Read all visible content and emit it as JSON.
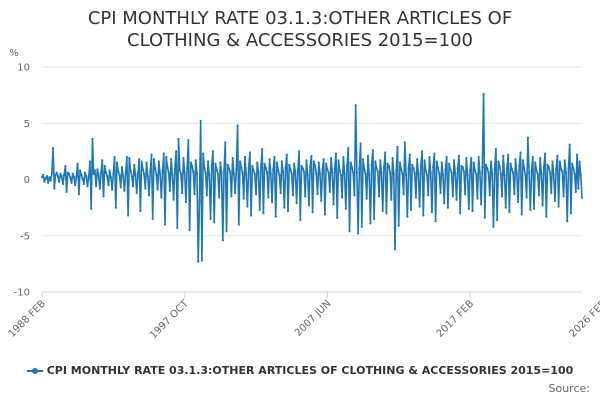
{
  "chart_data": {
    "type": "line",
    "title_lines": [
      "CPI MONTHLY RATE 03.1.3:OTHER ARTICLES OF",
      "CLOTHING & ACCESSORIES 2015=100"
    ],
    "ylabel": "%",
    "ylim": [
      -10,
      10
    ],
    "y_ticks": [
      10,
      5,
      0,
      -5,
      -10
    ],
    "x_ticks": [
      {
        "label": "1988 FEB",
        "index": 0
      },
      {
        "label": "1997 OCT",
        "index": 116
      },
      {
        "label": "2007 JUN",
        "index": 232
      },
      {
        "label": "2017 FEB",
        "index": 348
      },
      {
        "label": "2026 FEB",
        "index": 456
      }
    ],
    "start": "1988 FEB",
    "end": "2026 FEB",
    "series": [
      {
        "name": "CPI MONTHLY RATE 03.1.3:OTHER ARTICLES OF CLOTHING & ACCESSORIES 2015=100",
        "color": "#1f77b4",
        "values": [
          0.2,
          0.4,
          -0.2,
          0.1,
          0.3,
          -0.3,
          0.2,
          -0.1,
          0.5,
          2.8,
          -0.8,
          0.4,
          0.6,
          0.3,
          -0.2,
          0.5,
          0.3,
          -0.4,
          0.4,
          1.2,
          -1.1,
          0.6,
          0.5,
          0.2,
          -0.3,
          0.5,
          0.2,
          -0.5,
          0.3,
          1.4,
          -1.3,
          0.8,
          0.4,
          0.1,
          -0.4,
          0.6,
          0.3,
          -0.6,
          0.2,
          1.6,
          -2.6,
          3.6,
          0.5,
          0.8,
          -0.6,
          0.9,
          0.4,
          -0.8,
          0.6,
          1.7,
          -1.5,
          1.2,
          0.6,
          0.3,
          -0.5,
          0.8,
          0.2,
          -0.9,
          0.5,
          2.0,
          -2.5,
          1.5,
          0.7,
          0.4,
          -0.7,
          1.1,
          0.3,
          -1.0,
          0.6,
          2.0,
          -3.2,
          1.9,
          0.8,
          0.3,
          -0.6,
          1.3,
          0.4,
          -1.2,
          0.5,
          1.8,
          -2.8,
          1.6,
          0.9,
          0.5,
          -0.8,
          1.5,
          0.3,
          -1.4,
          0.7,
          2.2,
          -3.5,
          1.8,
          1.0,
          0.4,
          -0.9,
          1.6,
          0.5,
          -1.6,
          0.8,
          2.3,
          -4.0,
          2.0,
          1.1,
          0.6,
          -1.0,
          1.8,
          0.4,
          -1.8,
          0.9,
          2.5,
          -4.3,
          3.6,
          0.8,
          0.5,
          -1.2,
          1.9,
          0.6,
          -2.0,
          1.0,
          3.5,
          -4.5,
          1.5,
          1.2,
          0.7,
          -1.3,
          1.7,
          0.5,
          -7.3,
          -2.0,
          5.2,
          -7.2,
          2.3,
          1.0,
          0.6,
          -1.4,
          1.6,
          0.4,
          -3.5,
          1.2,
          2.5,
          -3.8,
          1.4,
          0.9,
          0.5,
          -1.6,
          1.5,
          0.6,
          -5.4,
          0.8,
          3.3,
          -4.6,
          1.3,
          1.0,
          0.7,
          -1.5,
          1.9,
          0.5,
          -1.2,
          0.9,
          4.8,
          -4.0,
          1.6,
          1.1,
          0.6,
          -1.7,
          2.0,
          0.4,
          -2.4,
          1.0,
          2.4,
          -3.2,
          1.2,
          0.8,
          0.5,
          -1.3,
          1.5,
          0.6,
          -2.7,
          1.1,
          2.7,
          -3.0,
          1.4,
          1.0,
          0.6,
          -1.6,
          1.8,
          0.5,
          -2.0,
          0.9,
          2.0,
          -3.3,
          1.5,
          0.8,
          0.4,
          -1.2,
          1.6,
          0.7,
          -2.5,
          1.0,
          2.2,
          -2.8,
          1.3,
          0.9,
          0.5,
          -1.4,
          1.4,
          0.6,
          -2.1,
          0.8,
          2.5,
          -3.6,
          1.2,
          1.0,
          0.7,
          -1.5,
          1.7,
          0.4,
          -2.3,
          1.1,
          2.1,
          -2.9,
          1.6,
          1.2,
          0.5,
          -1.3,
          1.5,
          0.5,
          -1.9,
          0.9,
          1.8,
          -3.1,
          1.4,
          0.9,
          0.6,
          -1.1,
          1.9,
          0.6,
          -2.2,
          1.0,
          2.3,
          -3.4,
          1.7,
          0.8,
          0.4,
          -1.6,
          2.0,
          0.5,
          -2.6,
          1.2,
          2.8,
          -4.6,
          1.5,
          1.1,
          0.6,
          -1.4,
          6.6,
          0.6,
          -4.8,
          1.0,
          3.2,
          -4.2,
          1.8,
          0.9,
          0.5,
          -1.7,
          2.1,
          0.4,
          -3.9,
          1.3,
          2.6,
          -3.5,
          1.6,
          1.0,
          0.7,
          -1.5,
          1.7,
          0.6,
          -2.8,
          1.1,
          2.4,
          -3.0,
          1.4,
          1.2,
          0.6,
          -1.8,
          1.9,
          0.5,
          -6.2,
          0.8,
          2.9,
          -4.1,
          1.5,
          0.9,
          0.5,
          -1.3,
          3.3,
          0.4,
          -3.3,
          1.0,
          2.2,
          -2.7,
          1.3,
          1.0,
          0.6,
          -1.6,
          1.8,
          0.5,
          -2.4,
          1.2,
          2.5,
          -3.2,
          1.7,
          0.8,
          0.4,
          -1.4,
          2.0,
          0.6,
          -2.9,
          1.1,
          2.3,
          -3.7,
          1.6,
          1.0,
          0.5,
          -1.2,
          1.5,
          0.4,
          -2.1,
          0.9,
          2.0,
          -2.5,
          1.4,
          0.9,
          0.6,
          -1.5,
          1.7,
          0.5,
          -1.8,
          1.0,
          2.1,
          -3.0,
          1.2,
          1.1,
          0.7,
          -1.3,
          1.9,
          0.4,
          -2.6,
          0.8,
          1.9,
          -2.8,
          1.5,
          0.8,
          0.5,
          -1.7,
          2.0,
          0.6,
          -2.2,
          1.1,
          7.6,
          -3.4,
          1.3,
          1.0,
          0.6,
          -1.4,
          1.6,
          0.5,
          -4.2,
          0.9,
          2.7,
          -3.6,
          1.6,
          1.2,
          0.5,
          -1.5,
          2.1,
          0.4,
          -2.5,
          1.0,
          2.2,
          -2.9,
          1.4,
          0.9,
          0.6,
          -1.3,
          1.8,
          0.5,
          -2.0,
          1.2,
          2.4,
          -3.1,
          1.7,
          1.0,
          0.4,
          -1.6,
          3.7,
          0.6,
          -2.7,
          0.8,
          2.0,
          -2.6,
          1.5,
          0.8,
          0.5,
          -1.4,
          1.9,
          0.5,
          -2.3,
          1.1,
          2.3,
          -3.3,
          1.3,
          1.1,
          0.6,
          -1.2,
          1.6,
          0.4,
          -1.9,
          0.9,
          2.1,
          -2.4,
          1.6,
          0.9,
          0.7,
          -1.5,
          1.7,
          0.6,
          -3.7,
          1.0,
          3.1,
          -3.0,
          1.4,
          1.0,
          0.5,
          -1.1,
          2.2,
          -0.8,
          1.6,
          0.4,
          -1.6
        ]
      }
    ]
  },
  "legend": {
    "label": "CPI MONTHLY RATE 03.1.3:OTHER ARTICLES OF CLOTHING & ACCESSORIES 2015=100"
  },
  "source": {
    "label": "Source:"
  }
}
